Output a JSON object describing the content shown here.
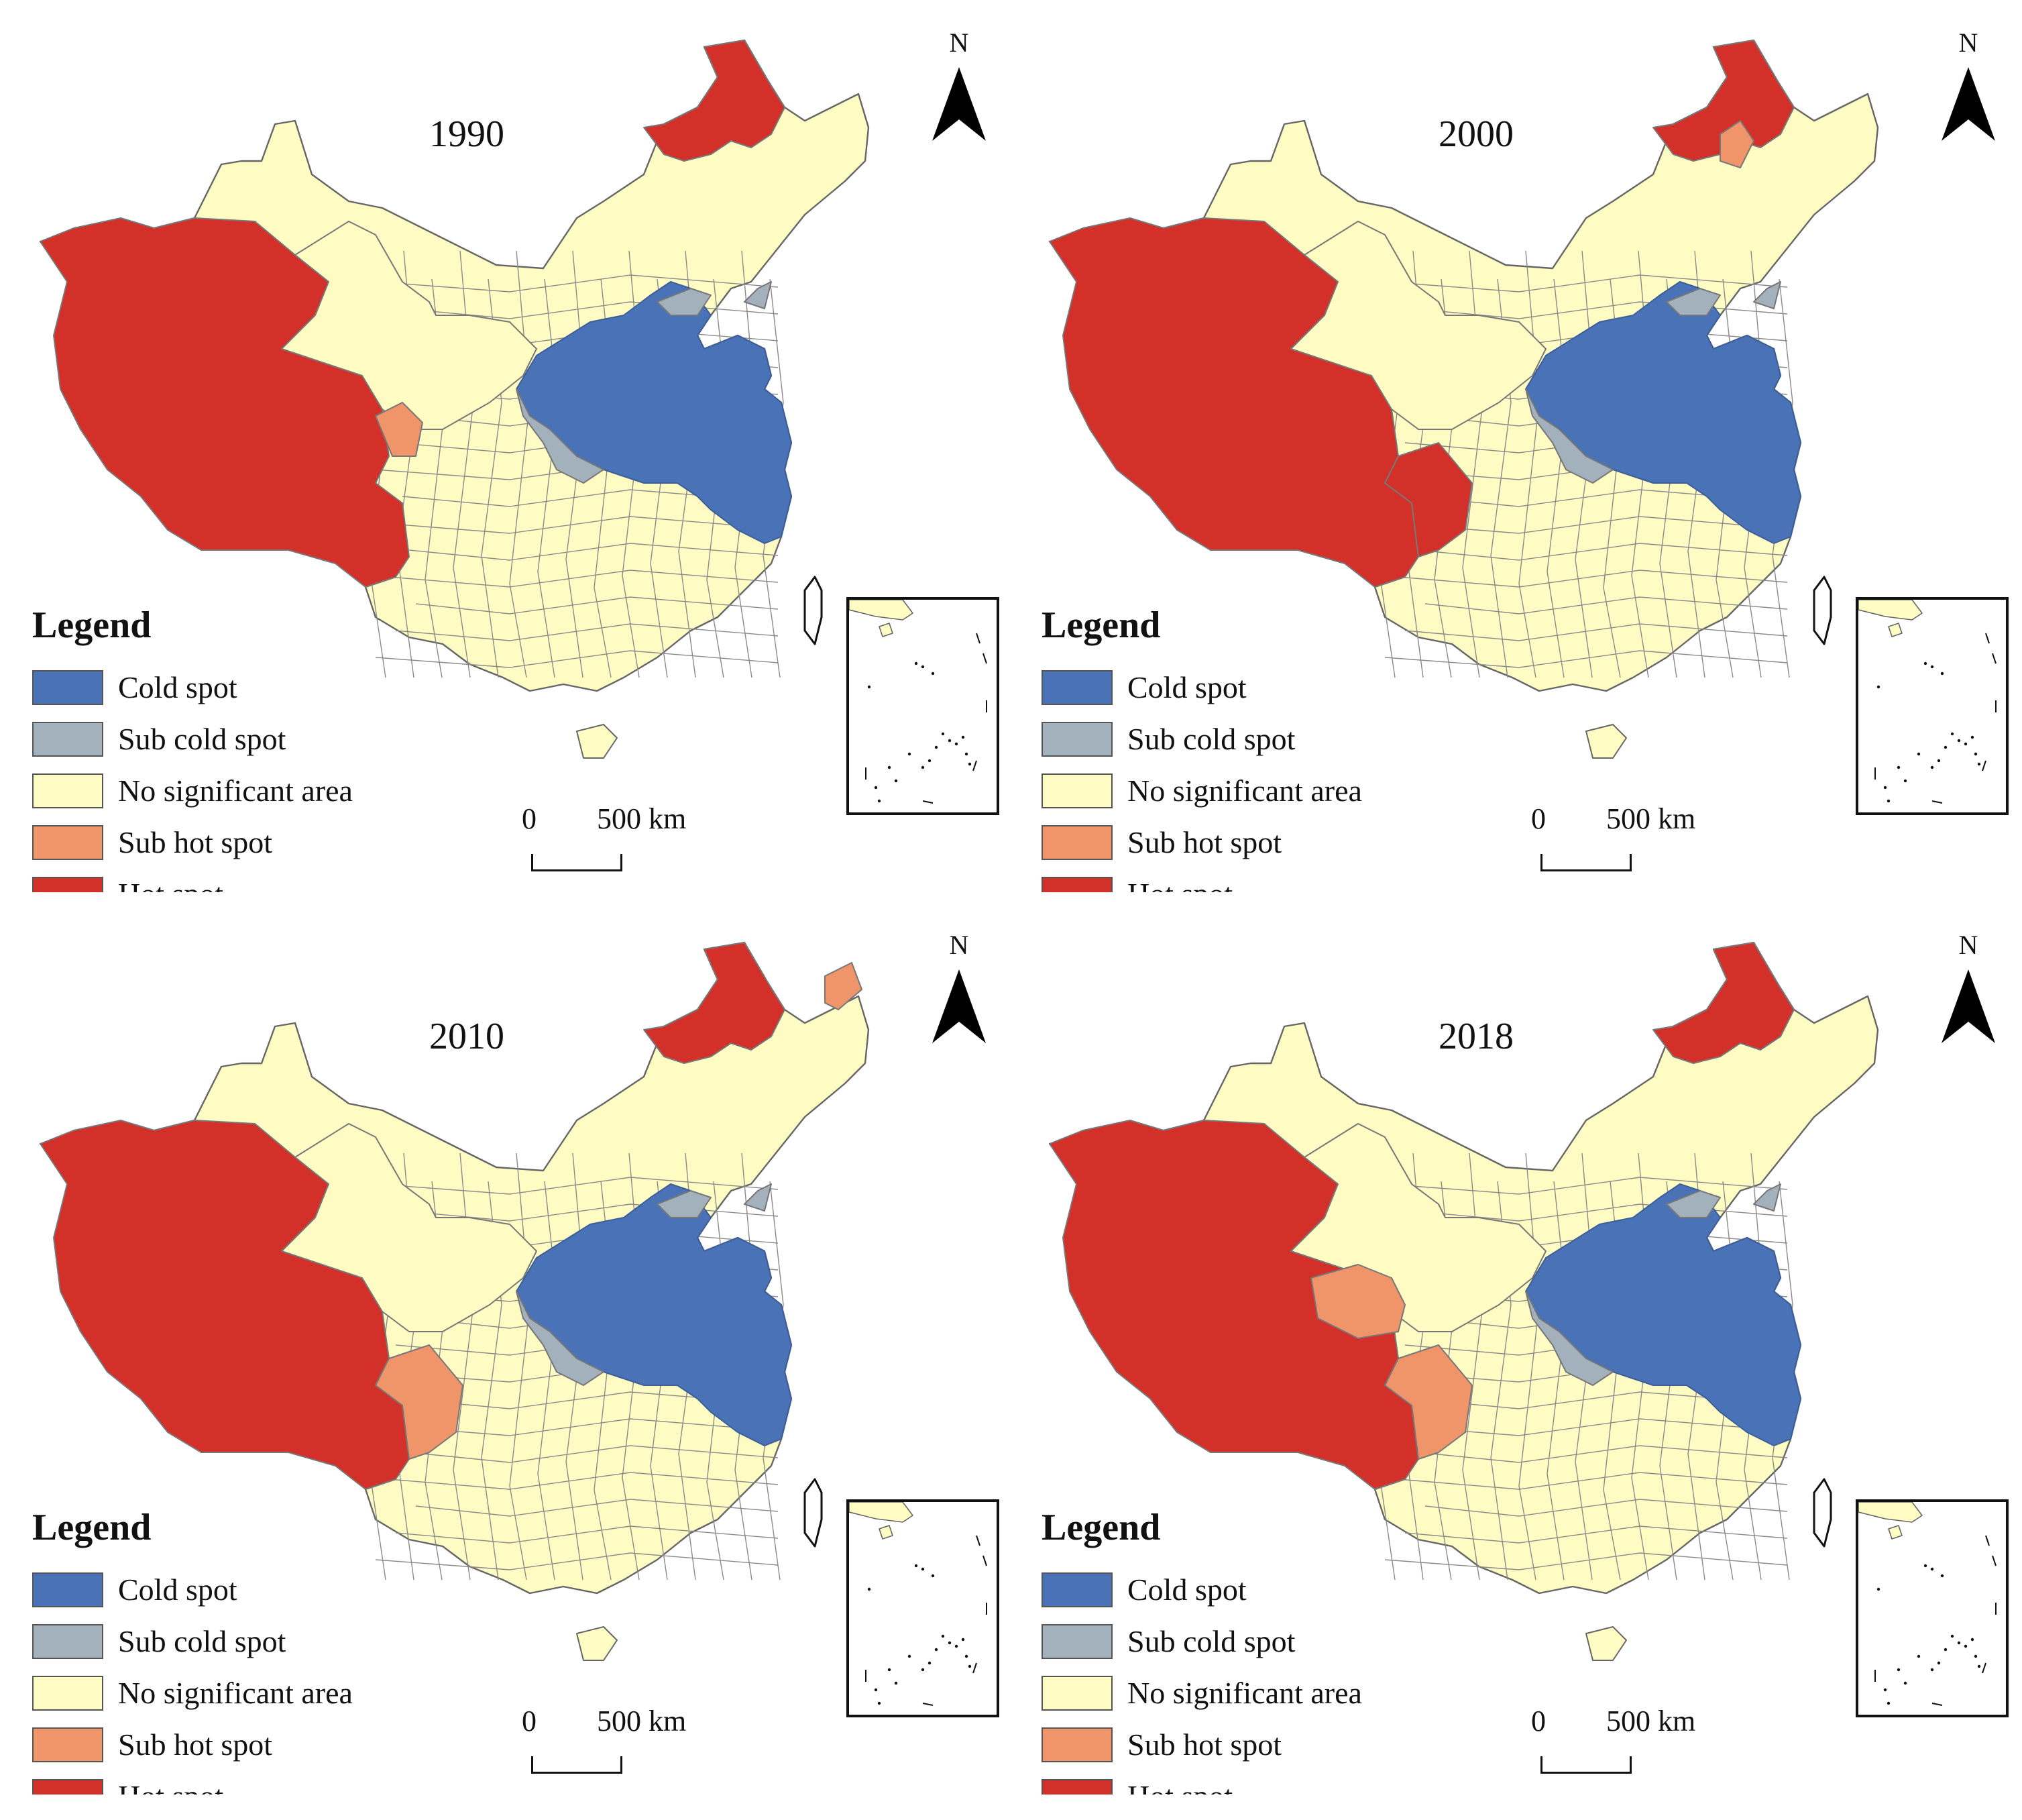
{
  "colors": {
    "cold_spot": "#4a72b6",
    "sub_cold_spot": "#a2b1bc",
    "no_significant_area": "#fefbc3",
    "sub_hot_spot": "#f0956a",
    "hot_spot": "#d3302a",
    "boundary": "#777777"
  },
  "legend": {
    "title": "Legend",
    "items": [
      {
        "key": "cold_spot",
        "label": "Cold spot"
      },
      {
        "key": "sub_cold_spot",
        "label": "Sub cold spot"
      },
      {
        "key": "no_significant_area",
        "label": "No significant area"
      },
      {
        "key": "sub_hot_spot",
        "label": "Sub hot spot"
      },
      {
        "key": "hot_spot",
        "label": "Hot spot"
      }
    ]
  },
  "north_label": "N",
  "scale_bar": {
    "start": "0",
    "end": "500 km"
  },
  "panels": [
    {
      "year": "1990",
      "northeast": "hot",
      "qinghai": "none",
      "sichuan_west": "none",
      "sichuan_hotspot": "small-sub-hot",
      "jilin_sub_hot": false,
      "heilongjiang_east_sub_hot": false
    },
    {
      "year": "2000",
      "northeast": "hot",
      "qinghai": "none",
      "sichuan_west": "hot",
      "sichuan_hotspot": "none",
      "jilin_sub_hot": true,
      "heilongjiang_east_sub_hot": false
    },
    {
      "year": "2010",
      "northeast": "hot",
      "qinghai": "none",
      "sichuan_west": "sub-hot",
      "sichuan_hotspot": "none",
      "jilin_sub_hot": false,
      "heilongjiang_east_sub_hot": true
    },
    {
      "year": "2018",
      "northeast": "hot",
      "qinghai": "sub-hot",
      "sichuan_west": "sub-hot",
      "sichuan_hotspot": "none",
      "jilin_sub_hot": false,
      "heilongjiang_east_sub_hot": false
    }
  ]
}
